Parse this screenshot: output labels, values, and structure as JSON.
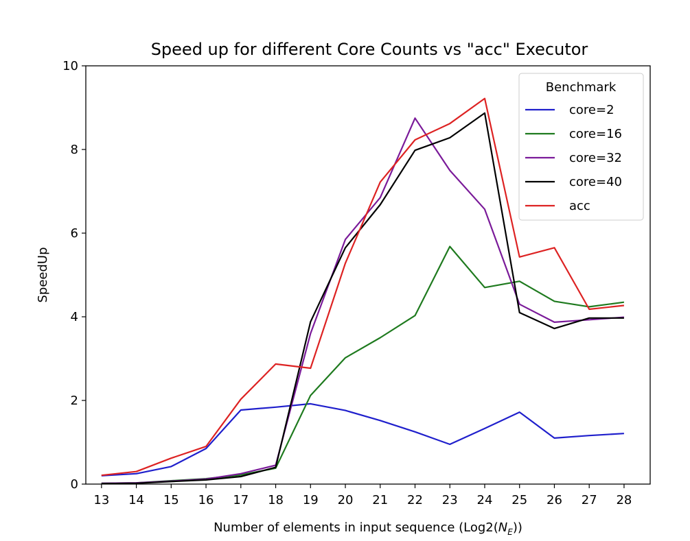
{
  "chart_data": {
    "type": "line",
    "title": "Speed up for different Core Counts vs \"acc\" Executor",
    "xlabel_prefix": "Number of elements in input sequence (Log2(",
    "xlabel_var": "N",
    "xlabel_sub": "E",
    "xlabel_suffix": "))",
    "ylabel": "SpeedUp",
    "x": [
      13,
      14,
      15,
      16,
      17,
      18,
      19,
      20,
      21,
      22,
      23,
      24,
      25,
      26,
      27,
      28
    ],
    "xlim": [
      12.55,
      28.75
    ],
    "ylim": [
      0,
      10
    ],
    "yticks": [
      0,
      2,
      4,
      6,
      8,
      10
    ],
    "legend_title": "Benchmark",
    "legend_position": "top-right",
    "series": [
      {
        "name": "core=2",
        "color": "#1f1fcc",
        "values": [
          0.2,
          0.25,
          0.42,
          0.85,
          1.77,
          1.84,
          1.92,
          1.76,
          1.52,
          1.25,
          0.95,
          1.33,
          1.72,
          1.1,
          1.16,
          1.21
        ]
      },
      {
        "name": "core=16",
        "color": "#1e7a1e",
        "values": [
          0.02,
          0.03,
          0.08,
          0.13,
          0.22,
          0.38,
          2.12,
          3.02,
          3.5,
          4.03,
          5.68,
          4.7,
          4.85,
          4.37,
          4.24,
          4.35
        ]
      },
      {
        "name": "core=32",
        "color": "#7a1a99",
        "values": [
          0.02,
          0.03,
          0.07,
          0.12,
          0.25,
          0.45,
          3.6,
          5.85,
          6.85,
          8.75,
          7.5,
          6.57,
          4.3,
          3.87,
          3.93,
          3.99
        ]
      },
      {
        "name": "core=40",
        "color": "#000000",
        "values": [
          0.01,
          0.02,
          0.06,
          0.1,
          0.18,
          0.4,
          3.88,
          5.65,
          6.68,
          7.98,
          8.28,
          8.87,
          4.1,
          3.72,
          3.97,
          3.97
        ]
      },
      {
        "name": "acc",
        "color": "#dd2222",
        "values": [
          0.21,
          0.3,
          0.62,
          0.9,
          2.03,
          2.87,
          2.77,
          5.28,
          7.22,
          8.23,
          8.62,
          9.22,
          5.43,
          5.65,
          4.18,
          4.27
        ]
      }
    ]
  }
}
